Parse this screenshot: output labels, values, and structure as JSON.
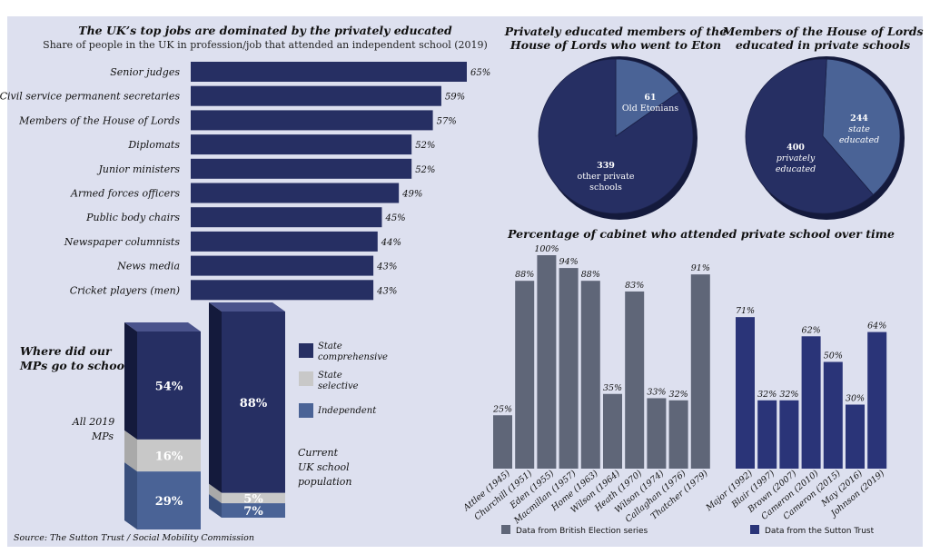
{
  "colors": {
    "navy": "#262f63",
    "navy_dark": "#1c2450",
    "navy_side": "#141a3c",
    "grey_bar": "#5f6678",
    "light_grey": "#c8c8c8",
    "light_grey_side": "#a9a9a9",
    "steel_blue": "#4a6396",
    "steel_blue_side": "#394f7c",
    "sutton_blue": "#2a3478"
  },
  "chart_data": [
    {
      "type": "bar",
      "orientation": "horizontal",
      "title": "The UK’s top jobs are dominated by the privately educated",
      "subtitle": "Share of people in the UK in profession/job that attended an independent school (2019)",
      "categories": [
        "Senior judges",
        "Civil service permanent secretaries",
        "Members of the House of Lords",
        "Diplomats",
        "Junior ministers",
        "Armed forces officers",
        "Public body chairs",
        "Newspaper columnists",
        "News media",
        "Cricket players (men)"
      ],
      "values": [
        65,
        59,
        57,
        52,
        52,
        49,
        45,
        44,
        43,
        43
      ],
      "value_labels": [
        "65%",
        "59%",
        "57%",
        "52%",
        "52%",
        "49%",
        "45%",
        "44%",
        "43%",
        "43%"
      ],
      "xlim": [
        0,
        65
      ]
    },
    {
      "type": "pie",
      "title_lines": [
        "Privately educated members of the",
        "House of Lords who went to Eton"
      ],
      "slices": [
        {
          "value": 61,
          "label": "61",
          "label2": "Old Etonians"
        },
        {
          "value": 339,
          "label": "339",
          "label2": "other private",
          "label3": "schools"
        }
      ]
    },
    {
      "type": "pie",
      "title_lines": [
        "Members of the House of Lords",
        "educated in private schools"
      ],
      "slices": [
        {
          "value": 244,
          "label": "244",
          "label2": "state",
          "label3": "educated"
        },
        {
          "value": 400,
          "label": "400",
          "label2": "privately",
          "label3": "educated"
        }
      ]
    },
    {
      "type": "bar",
      "title": "Percentage of cabinet who attended private school over time",
      "ylim": [
        0,
        100
      ],
      "series": [
        {
          "name": "Data from British Election series",
          "categories": [
            "Attlee (1945)",
            "Churchill (1951)",
            "Eden (1955)",
            "Macmillan (1957)",
            "Home (1963)",
            "Wilson (1964)",
            "Heath (1970)",
            "Wilson (1974)",
            "Callaghan (1976)",
            "Thatcher (1979)"
          ],
          "values": [
            25,
            88,
            100,
            94,
            88,
            35,
            83,
            33,
            32,
            91
          ],
          "value_labels": [
            "25%",
            "88%",
            "100%",
            "94%",
            "88%",
            "35%",
            "83%",
            "33%",
            "32%",
            "91%"
          ]
        },
        {
          "name": "Data from the Sutton Trust",
          "categories": [
            "Major (1992)",
            "Blair (1997)",
            "Brown (2007)",
            "Cameron (2010)",
            "Cameron (2015)",
            "May (2016)",
            "Johnson (2019)"
          ],
          "values": [
            71,
            32,
            32,
            62,
            50,
            30,
            64
          ],
          "value_labels": [
            "71%",
            "32%",
            "32%",
            "62%",
            "50%",
            "30%",
            "64%"
          ]
        }
      ]
    },
    {
      "type": "bar",
      "stacked": true,
      "title_lines": [
        "Where did our",
        "MPs go to school?"
      ],
      "categories": [
        {
          "lines": [
            "All 2019",
            "MPs"
          ]
        },
        {
          "lines": [
            "Current",
            "UK school",
            "population"
          ]
        }
      ],
      "series": [
        {
          "name_lines": [
            "State",
            "comprehensive"
          ],
          "values": [
            54,
            88
          ],
          "value_labels": [
            "54%",
            "88%"
          ]
        },
        {
          "name_lines": [
            "State",
            "selective"
          ],
          "values": [
            16,
            5
          ],
          "value_labels": [
            "16%",
            "5%"
          ]
        },
        {
          "name_lines": [
            "Independent"
          ],
          "values": [
            29,
            7
          ],
          "value_labels": [
            "29%",
            "7%"
          ]
        }
      ]
    }
  ],
  "source": "Source: The Sutton Trust / Social Mobility Commission"
}
